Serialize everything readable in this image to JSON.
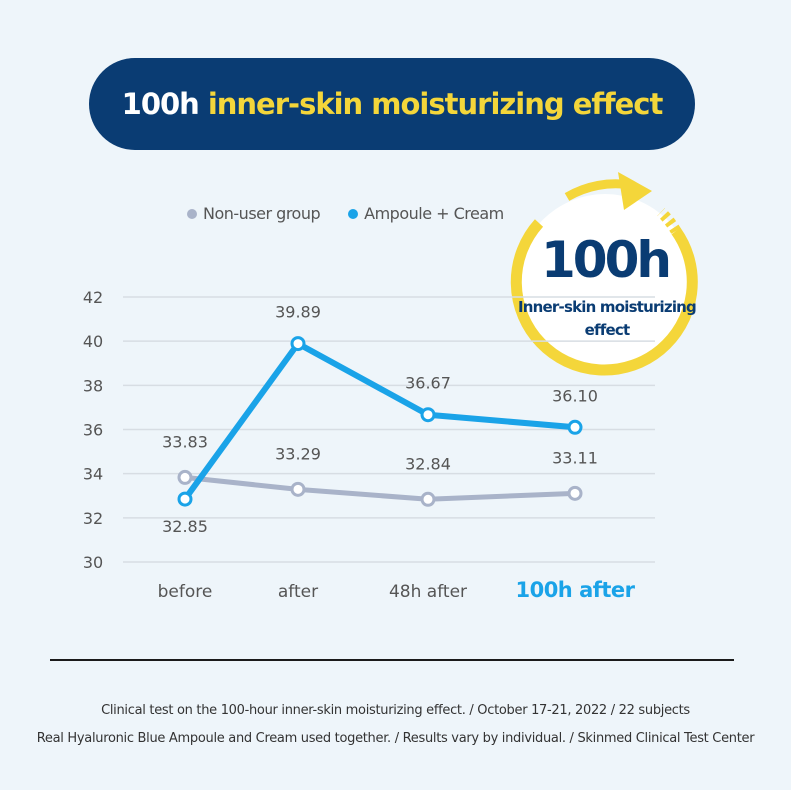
{
  "header": {
    "title_part1": "100h",
    "title_part2": "inner-skin moisturizing effect"
  },
  "badge": {
    "main": "100h",
    "sub": "Inner-skin moisturizing effect"
  },
  "colors": {
    "navy": "#0a3c73",
    "yellow": "#f4d63a",
    "blue_series": "#1aa3e8",
    "gray_series": "#a9b3c9",
    "background": "#eef5fa"
  },
  "chart_data": {
    "type": "line",
    "categories": [
      "before",
      "after",
      "48h after",
      "100h after"
    ],
    "highlighted_category": "100h after",
    "series": [
      {
        "name": "Non-user group",
        "color": "#a9b3c9",
        "values": [
          33.83,
          33.29,
          32.84,
          33.11
        ],
        "labels": [
          "33.83",
          "33.29",
          "32.84",
          "33.11"
        ]
      },
      {
        "name": "Ampoule + Cream",
        "color": "#1aa3e8",
        "values": [
          32.85,
          39.89,
          36.67,
          36.1
        ],
        "labels": [
          "32.85",
          "39.89",
          "36.67",
          "36.10"
        ]
      }
    ],
    "yticks": [
      "30",
      "32",
      "34",
      "36",
      "38",
      "40",
      "42"
    ],
    "ylim": [
      30,
      42
    ],
    "grid": true,
    "legend_position": "top-left"
  },
  "footnote": {
    "line1": "Clinical test on the 100-hour inner-skin moisturizing effect. / October 17-21, 2022 / 22 subjects",
    "line2": "Real Hyaluronic Blue Ampoule and Cream used together. / Results vary by individual. / Skinmed Clinical Test Center"
  }
}
